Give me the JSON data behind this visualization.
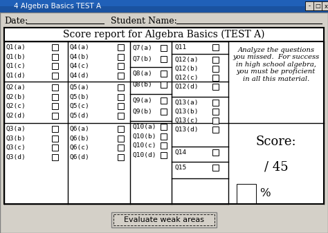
{
  "title_bar": "4 Algebra Basics TEST A",
  "bg_color": "#d4d0c8",
  "white": "#ffffff",
  "black": "#000000",
  "gray": "#808080",
  "title_bg": "#0a246a",
  "header_title": "Score report for Algebra Basics (TEST A)",
  "date_label": "Date:",
  "student_label": "Student Name:",
  "analyze_text": "Analyze the questions\nyou missed.  For success\nin high school algebra,\nyou must be proficient\nin all this material.",
  "score_label": "Score:",
  "score_total": "/ 45",
  "percent_symbol": "%",
  "button_text": "Evaluate weak areas",
  "col1_items": [
    "Q1(a)",
    "Q1(b)",
    "Q1(c)",
    "Q1(d)"
  ],
  "col2_items": [
    "Q2(a)",
    "Q2(b)",
    "Q2(c)",
    "Q2(d)"
  ],
  "col3_items": [
    "Q3(a)",
    "Q3(b)",
    "Q3(c)",
    "Q3(d)"
  ],
  "col4_items": [
    "Q4(a)",
    "Q4(b)",
    "Q4(c)",
    "Q4(d)"
  ],
  "col5_items": [
    "Q5(a)",
    "Q5(b)",
    "Q5(c)",
    "Q5(d)"
  ],
  "col6_items": [
    "Q6(a)",
    "Q6(b)",
    "Q6(c)",
    "Q6(d)"
  ],
  "col7_items": [
    "Q7(a)",
    "Q7(b)"
  ],
  "col8_items": [
    "Q8(a)",
    "Q8(b)"
  ],
  "col9_items": [
    "Q9(a)",
    "Q9(b)"
  ],
  "col10_items": [
    "Q10(a)",
    "Q10(b)",
    "Q10(c)",
    "Q10(d)"
  ],
  "col11": "Q11",
  "col12_items": [
    "Q12(a)",
    "Q12(b)",
    "Q12(c)",
    "Q12(d)"
  ],
  "col13_items": [
    "Q13(a)",
    "Q13(b)",
    "Q13(c)",
    "Q13(d)"
  ],
  "col14": "Q14",
  "col15": "Q15",
  "figw": 4.74,
  "figh": 3.37,
  "dpi": 100
}
